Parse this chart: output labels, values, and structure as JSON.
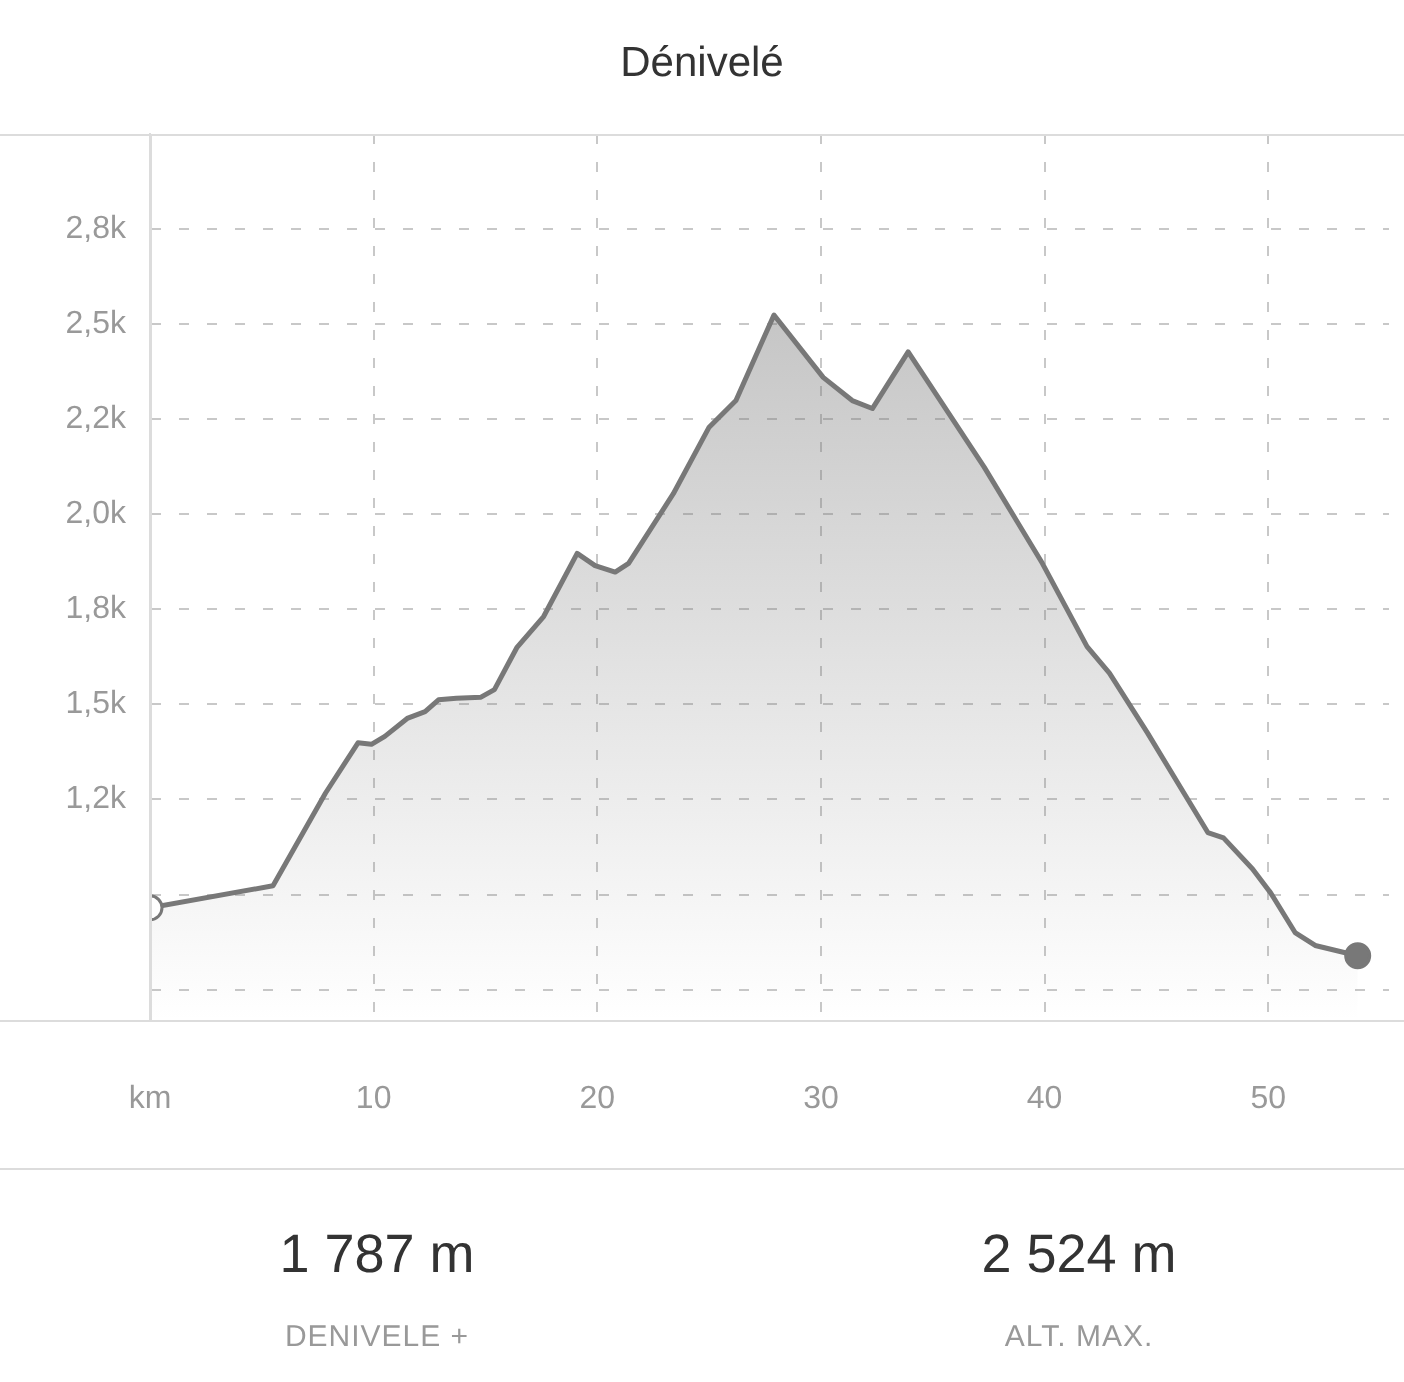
{
  "chart_data": {
    "type": "area",
    "title": "Dénivelé",
    "x": [
      0,
      5.5,
      7.85,
      9.3,
      9.9,
      10.5,
      11.5,
      12.3,
      12.9,
      13.7,
      14.8,
      15.4,
      16.4,
      17.6,
      19.1,
      19.9,
      20.8,
      21.4,
      23.4,
      25.0,
      26.2,
      27.9,
      30.1,
      31.4,
      32.3,
      33.9,
      37.3,
      39.9,
      41.9,
      42.9,
      44.6,
      47.3,
      48.0,
      49.3,
      50.1,
      51.2,
      52.1,
      54.0
    ],
    "series": [
      {
        "color": "#787878",
        "values": [
          965,
          1023,
          1267,
          1399,
          1395,
          1416,
          1463,
          1481,
          1512,
          1516,
          1519,
          1539,
          1649,
          1731,
          1897,
          1865,
          1848,
          1871,
          2054,
          2229,
          2299,
          2524,
          2360,
          2299,
          2278,
          2427,
          2124,
          1871,
          1652,
          1582,
          1425,
          1163,
          1149,
          1067,
          1005,
          900,
          866,
          839
        ]
      }
    ],
    "xlim": [
      0,
      55.4
    ],
    "xticks": [
      {
        "value": 0,
        "label": "km"
      },
      10,
      20,
      30,
      40,
      50
    ],
    "ylim": [
      670,
      3000
    ],
    "yticks": [
      {
        "value": 750,
        "label": null
      },
      {
        "value": 1000,
        "label": null
      },
      {
        "value": 1250,
        "label": "1,2k"
      },
      {
        "value": 1500,
        "label": "1,5k"
      },
      {
        "value": 1750,
        "label": "1,8k"
      },
      {
        "value": 2000,
        "label": "2,0k"
      },
      {
        "value": 2250,
        "label": "2,2k"
      },
      {
        "value": 2500,
        "label": "2,5k"
      },
      {
        "value": 2750,
        "label": "2,8k"
      }
    ],
    "grid": true,
    "legend": false,
    "annotations": [
      "1 787 m",
      "DENIVELE +",
      "2 524 m",
      "ALT. MAX."
    ]
  }
}
